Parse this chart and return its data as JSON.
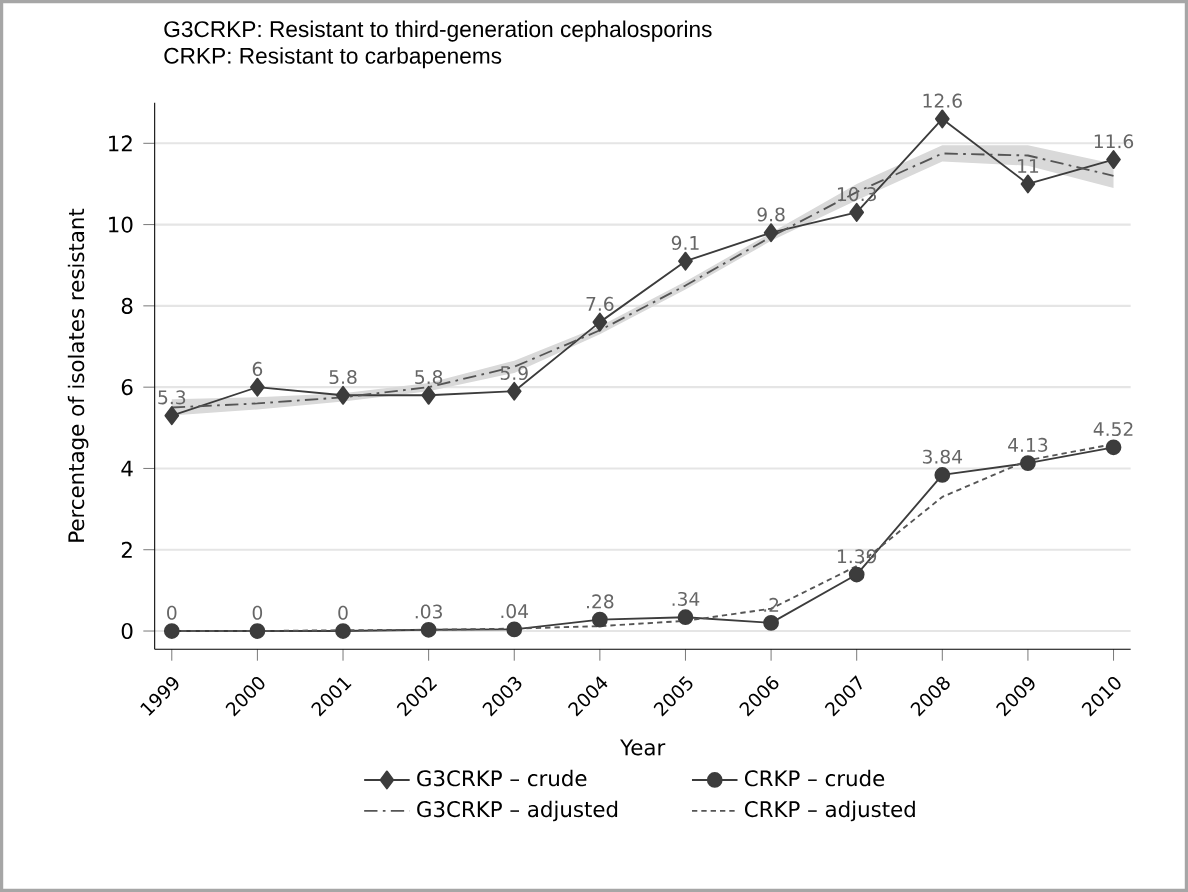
{
  "chart_data": {
    "type": "line",
    "annotations": [
      "G3CRKP: Resistant to third-generation cephalosporins",
      "CRKP: Resistant to carbapenems"
    ],
    "xlabel": "Year",
    "ylabel": "Percentage of isolates resistant",
    "x": [
      1999,
      2000,
      2001,
      2002,
      2003,
      2004,
      2005,
      2006,
      2007,
      2008,
      2009,
      2010
    ],
    "xlim": [
      1998.8,
      2010.2
    ],
    "ylim": [
      -0.45,
      13
    ],
    "xticks": [
      1999,
      2000,
      2001,
      2002,
      2003,
      2004,
      2005,
      2006,
      2007,
      2008,
      2009,
      2010
    ],
    "yticks": [
      0,
      2,
      4,
      6,
      8,
      10,
      12
    ],
    "grid": "y",
    "legend": "bottom",
    "series": [
      {
        "name": "G3CRKP – crude",
        "color": "#3c3c3c",
        "marker": "diamond",
        "line_style": "solid",
        "values": [
          5.3,
          6,
          5.8,
          5.8,
          5.9,
          7.6,
          9.1,
          9.8,
          10.3,
          12.6,
          11,
          11.6
        ],
        "value_labels": [
          "5.3",
          "6",
          "5.8",
          "5.8",
          "5.9",
          "7.6",
          "9.1",
          "9.8",
          "10.3",
          "12.6",
          "11",
          "11.6"
        ]
      },
      {
        "name": "CRKP – crude",
        "color": "#3c3c3c",
        "marker": "circle",
        "line_style": "solid",
        "values": [
          0,
          0,
          0,
          0.03,
          0.04,
          0.28,
          0.34,
          0.2,
          1.39,
          3.84,
          4.13,
          4.52
        ],
        "value_labels": [
          "0",
          "0",
          "0",
          ".03",
          ".04",
          ".28",
          ".34",
          ".2",
          "1.39",
          "3.84",
          "4.13",
          "4.52"
        ]
      },
      {
        "name": "G3CRKP – adjusted",
        "color": "#555555",
        "marker": "none",
        "line_style": "dashed",
        "values": [
          5.5,
          5.6,
          5.75,
          6.0,
          6.5,
          7.4,
          8.5,
          9.7,
          10.8,
          11.75,
          11.7,
          11.2
        ],
        "lower": [
          5.3,
          5.45,
          5.65,
          5.9,
          6.35,
          7.3,
          8.4,
          9.6,
          10.6,
          11.55,
          11.45,
          10.9
        ],
        "upper": [
          5.7,
          5.75,
          5.85,
          6.1,
          6.65,
          7.5,
          8.6,
          9.8,
          11.0,
          11.95,
          11.95,
          11.5
        ]
      },
      {
        "name": "CRKP – adjusted",
        "color": "#555555",
        "marker": "none",
        "line_style": "dotted",
        "values": [
          0,
          0,
          0.02,
          0.03,
          0.06,
          0.12,
          0.25,
          0.55,
          1.6,
          3.3,
          4.2,
          4.6
        ]
      }
    ]
  }
}
